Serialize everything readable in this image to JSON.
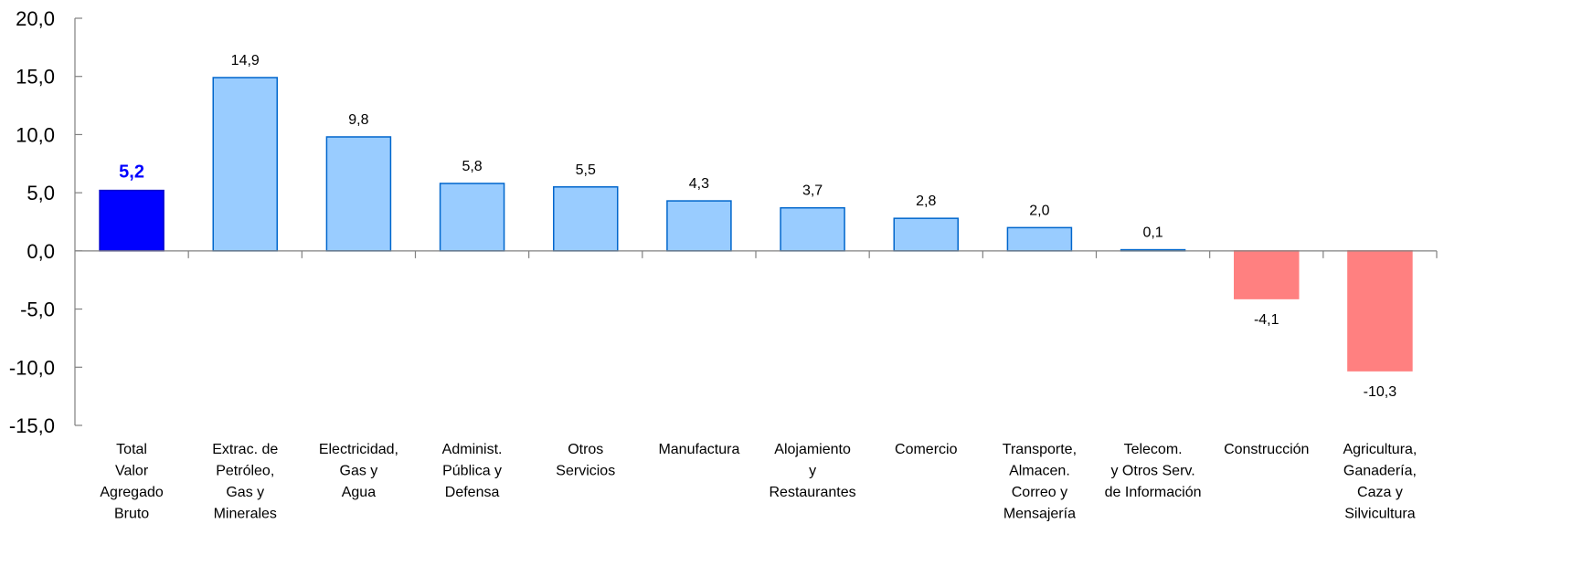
{
  "chart_data": {
    "type": "bar",
    "categories": [
      [
        "Total",
        "Valor",
        "Agregado",
        "Bruto"
      ],
      [
        "Extrac. de",
        "Petróleo,",
        "Gas y",
        "Minerales"
      ],
      [
        "Electricidad,",
        "Gas y",
        "Agua"
      ],
      [
        "Administ.",
        "Pública y",
        "Defensa"
      ],
      [
        "Otros",
        "Servicios"
      ],
      [
        "Manufactura"
      ],
      [
        "Alojamiento",
        "y",
        "Restaurantes"
      ],
      [
        "Comercio"
      ],
      [
        "Transporte,",
        "Almacen.",
        "Correo y",
        "Mensajería"
      ],
      [
        "Telecom.",
        "y Otros Serv.",
        "de Información"
      ],
      [
        "Construcción"
      ],
      [
        "Agricultura,",
        "Ganadería,",
        "Caza y",
        "Silvicultura"
      ]
    ],
    "values": [
      5.2,
      14.9,
      9.8,
      5.8,
      5.5,
      4.3,
      3.7,
      2.8,
      2.0,
      0.1,
      -4.1,
      -10.3
    ],
    "value_labels": [
      "5,2",
      "14,9",
      "9,8",
      "5,8",
      "5,5",
      "4,3",
      "3,7",
      "2,8",
      "2,0",
      "0,1",
      "-4,1",
      "-10,3"
    ],
    "y_ticks": [
      20,
      15,
      10,
      5,
      0,
      -5,
      -10,
      -15
    ],
    "y_tick_labels": [
      "20,0",
      "15,0",
      "10,0",
      "5,0",
      "0,0",
      "-5,0",
      "-10,0",
      "-15,0"
    ],
    "ylim": [
      -15,
      20
    ],
    "highlight_index": 0,
    "grid": false,
    "legend": "none",
    "title": "",
    "xlabel": "",
    "ylabel": ""
  },
  "colors": {
    "highlight_fill": "#0000FF",
    "highlight_stroke": "#0000CC",
    "highlight_label": "#0000FF",
    "positive_fill": "#99CCFF",
    "positive_stroke": "#0066CC",
    "negative_fill": "#FF8080",
    "negative_stroke": "#FF8080",
    "axis": "#808080"
  }
}
